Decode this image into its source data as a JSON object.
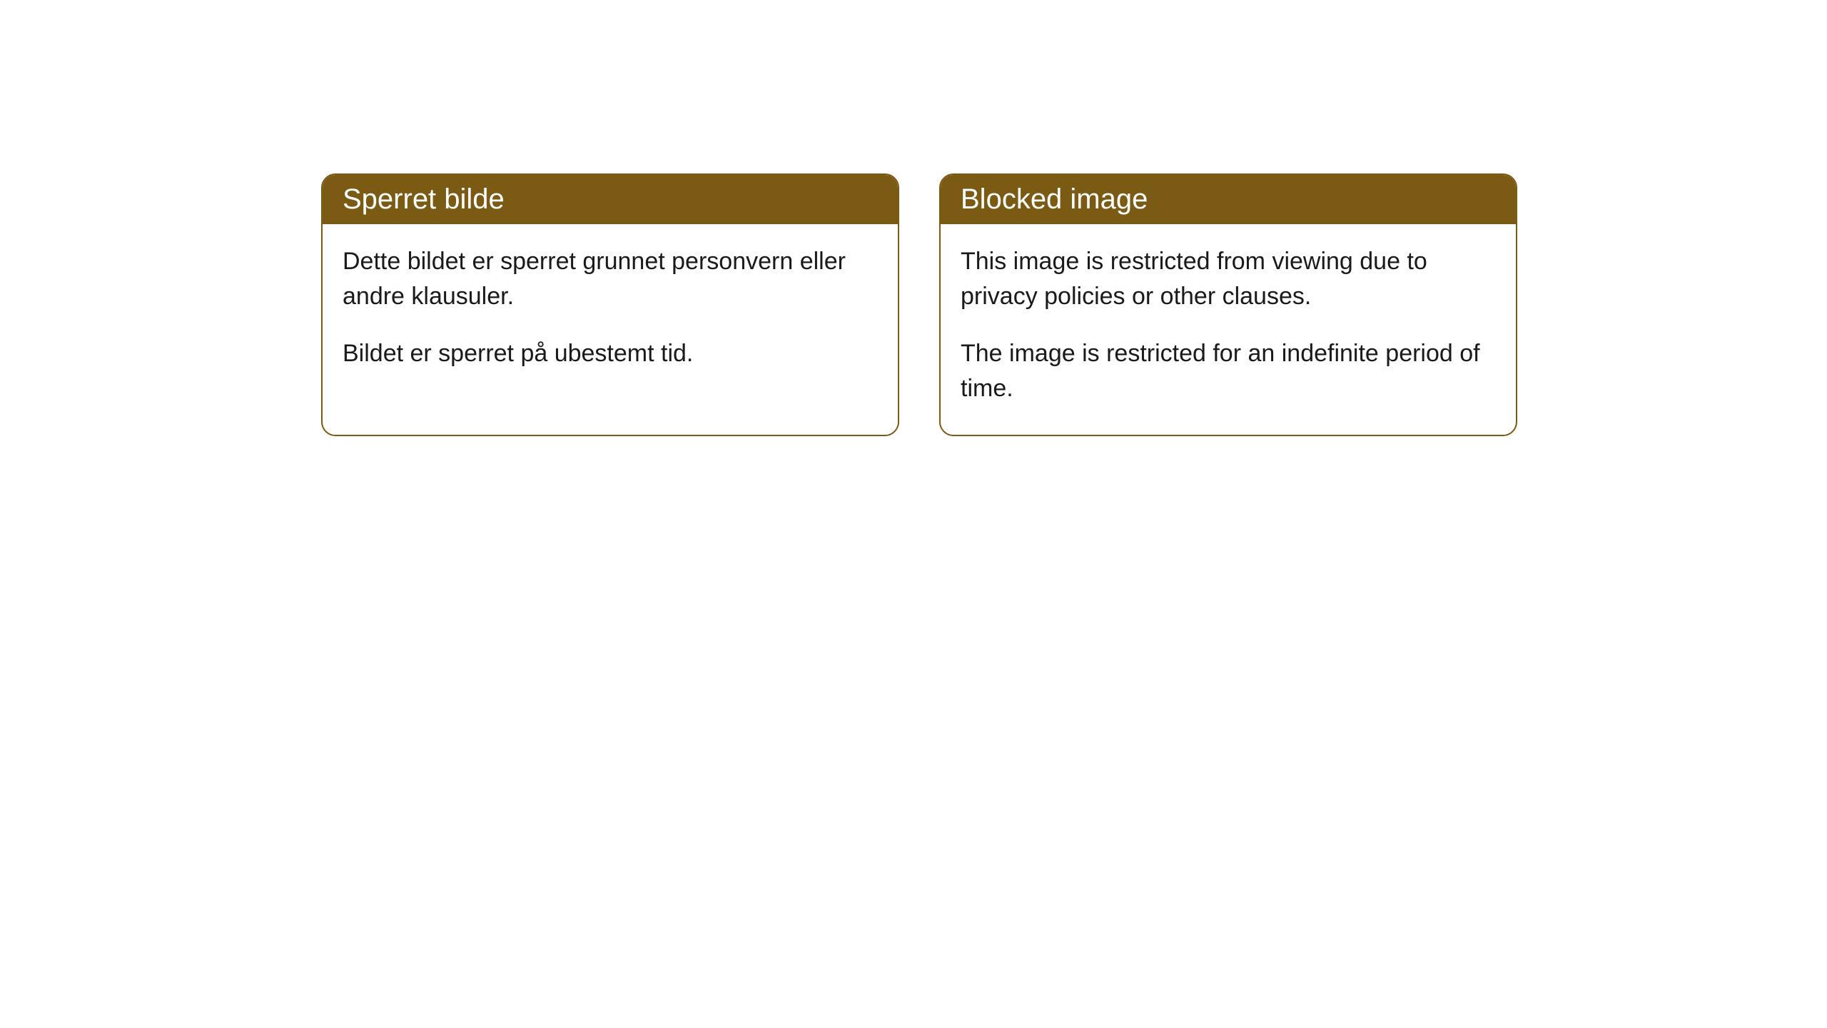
{
  "cards": [
    {
      "title": "Sperret bilde",
      "paragraph1": "Dette bildet er sperret grunnet personvern eller andre klausuler.",
      "paragraph2": "Bildet er sperret på ubestemt tid."
    },
    {
      "title": "Blocked image",
      "paragraph1": "This image is restricted from viewing due to privacy policies or other clauses.",
      "paragraph2": "The image is restricted for an indefinite period of time."
    }
  ],
  "styling": {
    "header_background_color": "#7b5a13",
    "header_text_color": "#ffffff",
    "border_color": "#7b5a13",
    "body_text_color": "#1a1a1a",
    "background_color": "#ffffff",
    "border_radius": 20,
    "header_fontsize": 40,
    "body_fontsize": 34
  }
}
